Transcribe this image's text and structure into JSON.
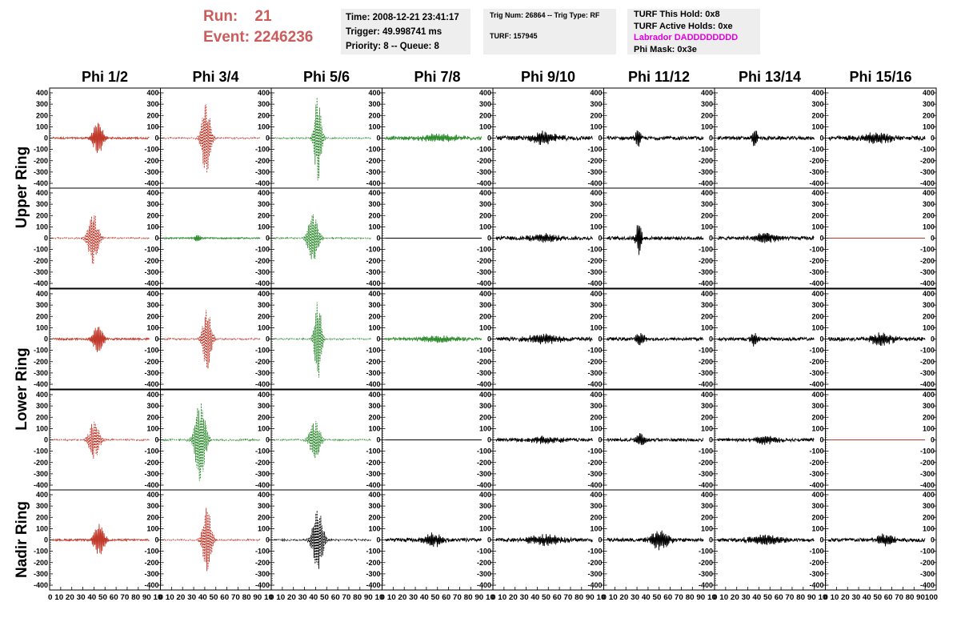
{
  "header": {
    "run_label": "Run:",
    "run_value": "21",
    "event_label": "Event:",
    "event_value": "2246236",
    "time_line": "Time: 2008-12-21 23:41:17",
    "trigger_line": "Trigger: 49.998741 ms",
    "priority_line": "Priority: 8 -- Queue: 8",
    "trig_line": "Trig Num: 26864 -- Trig Type: RF",
    "turf_line": "TURF: 157945",
    "turf_hold": "TURF This Hold: 0x8",
    "turf_active": "TURF Active Holds: 0xe",
    "labrador": "Labrador DADDDDDDDD",
    "phi_mask": "Phi Mask: 0x3e",
    "labrador_color": "#e000e0",
    "run_color": "#cc5b5b"
  },
  "columns": [
    "Phi 1/2",
    "Phi 3/4",
    "Phi 5/6",
    "Phi 7/8",
    "Phi 9/10",
    "Phi 11/12",
    "Phi 13/14",
    "Phi 15/16"
  ],
  "rings": [
    {
      "label": "Upper Ring",
      "rows": [
        0,
        1
      ]
    },
    {
      "label": "Lower Ring",
      "rows": [
        2,
        3
      ]
    },
    {
      "label": "Nadir Ring",
      "rows": [
        4
      ]
    }
  ],
  "colors": {
    "red": "#c0392b",
    "green": "#2e8b2e",
    "black": "#000000"
  },
  "chart_data": {
    "type": "line",
    "description_axes": {
      "x_range": [
        0,
        100
      ],
      "y_range": [
        -400,
        400
      ]
    },
    "x_ticks": [
      0,
      10,
      20,
      30,
      40,
      50,
      60,
      70,
      80,
      90,
      100
    ],
    "y_ticks": [
      400,
      300,
      200,
      100,
      0,
      -100,
      -200,
      -300,
      -400
    ],
    "x_tick_labels": "0 10 20 30 40 50 60 70 80 90 10",
    "last_x_tick_label": "0 10 20 30 40 50 60 70 80 90100",
    "panels": [
      [
        {
          "color": "red",
          "dash": false,
          "amp": 140,
          "center": 47,
          "width": 6,
          "noise": 8
        },
        {
          "color": "red",
          "dash": true,
          "amp": 330,
          "center": 44,
          "width": 5,
          "noise": 6
        },
        {
          "color": "green",
          "dash": true,
          "amp": 380,
          "center": 45,
          "width": 4,
          "noise": 6
        },
        {
          "color": "green",
          "dash": false,
          "amp": 30,
          "center": 55,
          "width": 25,
          "noise": 14
        },
        {
          "color": "black",
          "dash": false,
          "amp": 50,
          "center": 50,
          "width": 15,
          "noise": 18
        },
        {
          "color": "black",
          "dash": false,
          "amp": 80,
          "center": 32,
          "width": 3,
          "noise": 15
        },
        {
          "color": "black",
          "dash": false,
          "amp": 90,
          "center": 38,
          "width": 3,
          "noise": 15
        },
        {
          "color": "black",
          "dash": false,
          "amp": 40,
          "center": 50,
          "width": 20,
          "noise": 18
        }
      ],
      [
        {
          "color": "red",
          "dash": true,
          "amp": 230,
          "center": 42,
          "width": 6,
          "noise": 6
        },
        {
          "color": "green",
          "dash": false,
          "amp": 30,
          "center": 35,
          "width": 4,
          "noise": 6
        },
        {
          "color": "green",
          "dash": true,
          "amp": 210,
          "center": 40,
          "width": 6,
          "noise": 6
        },
        {
          "color": "black",
          "dash": false,
          "amp": 0,
          "center": 50,
          "width": 10,
          "noise": 0
        },
        {
          "color": "black",
          "dash": false,
          "amp": 35,
          "center": 50,
          "width": 15,
          "noise": 15
        },
        {
          "color": "black",
          "dash": false,
          "amp": 160,
          "center": 33,
          "width": 3,
          "noise": 15
        },
        {
          "color": "black",
          "dash": false,
          "amp": 40,
          "center": 50,
          "width": 15,
          "noise": 14
        },
        {
          "color": "red",
          "dash": false,
          "amp": 0,
          "center": 50,
          "width": 10,
          "noise": 0
        }
      ],
      [
        {
          "color": "red",
          "dash": false,
          "amp": 120,
          "center": 47,
          "width": 6,
          "noise": 8
        },
        {
          "color": "red",
          "dash": true,
          "amp": 280,
          "center": 45,
          "width": 5,
          "noise": 6
        },
        {
          "color": "green",
          "dash": true,
          "amp": 370,
          "center": 45,
          "width": 4,
          "noise": 6
        },
        {
          "color": "green",
          "dash": false,
          "amp": 25,
          "center": 55,
          "width": 25,
          "noise": 12
        },
        {
          "color": "black",
          "dash": false,
          "amp": 35,
          "center": 50,
          "width": 20,
          "noise": 15
        },
        {
          "color": "black",
          "dash": false,
          "amp": 45,
          "center": 35,
          "width": 6,
          "noise": 14
        },
        {
          "color": "black",
          "dash": false,
          "amp": 60,
          "center": 38,
          "width": 4,
          "noise": 14
        },
        {
          "color": "black",
          "dash": false,
          "amp": 45,
          "center": 55,
          "width": 15,
          "noise": 16
        }
      ],
      [
        {
          "color": "red",
          "dash": true,
          "amp": 170,
          "center": 43,
          "width": 6,
          "noise": 6
        },
        {
          "color": "green",
          "dash": true,
          "amp": 370,
          "center": 38,
          "width": 6,
          "noise": 8
        },
        {
          "color": "green",
          "dash": true,
          "amp": 170,
          "center": 42,
          "width": 6,
          "noise": 6
        },
        {
          "color": "black",
          "dash": false,
          "amp": 0,
          "center": 50,
          "width": 10,
          "noise": 0
        },
        {
          "color": "black",
          "dash": false,
          "amp": 25,
          "center": 50,
          "width": 20,
          "noise": 14
        },
        {
          "color": "black",
          "dash": false,
          "amp": 60,
          "center": 35,
          "width": 5,
          "noise": 14
        },
        {
          "color": "black",
          "dash": false,
          "amp": 35,
          "center": 50,
          "width": 15,
          "noise": 13
        },
        {
          "color": "red",
          "dash": false,
          "amp": 0,
          "center": 50,
          "width": 10,
          "noise": 0
        }
      ],
      [
        {
          "color": "red",
          "dash": false,
          "amp": 140,
          "center": 48,
          "width": 6,
          "noise": 8
        },
        {
          "color": "red",
          "dash": true,
          "amp": 300,
          "center": 45,
          "width": 5,
          "noise": 6
        },
        {
          "color": "black",
          "dash": true,
          "amp": 270,
          "center": 45,
          "width": 6,
          "noise": 8
        },
        {
          "color": "black",
          "dash": false,
          "amp": 60,
          "center": 50,
          "width": 10,
          "noise": 15
        },
        {
          "color": "black",
          "dash": false,
          "amp": 40,
          "center": 50,
          "width": 20,
          "noise": 15
        },
        {
          "color": "black",
          "dash": false,
          "amp": 80,
          "center": 55,
          "width": 10,
          "noise": 15
        },
        {
          "color": "black",
          "dash": false,
          "amp": 40,
          "center": 50,
          "width": 20,
          "noise": 14
        },
        {
          "color": "black",
          "dash": false,
          "amp": 50,
          "center": 60,
          "width": 10,
          "noise": 16
        }
      ]
    ]
  }
}
